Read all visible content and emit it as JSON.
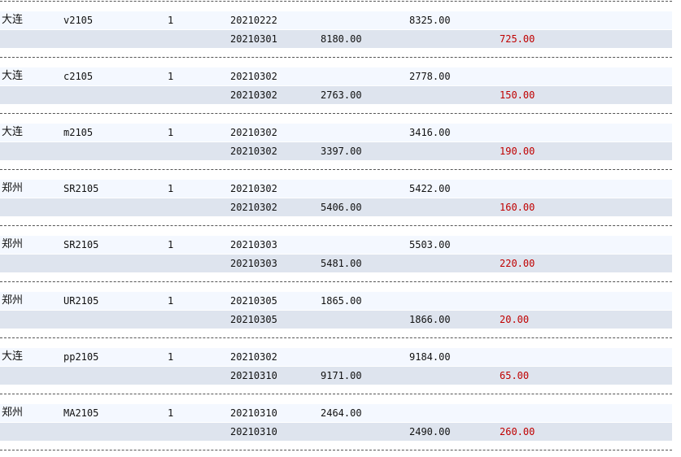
{
  "theme": {
    "pnl_color": "#c00000",
    "open_row_bg": "#f4f8ff",
    "close_row_bg": "#dee4ee"
  },
  "trades": [
    {
      "exchange": "大连",
      "code": "v2105",
      "qty": "1",
      "open": {
        "date": "20210222",
        "buy": "",
        "sell": "8325.00"
      },
      "close": {
        "date": "20210301",
        "buy": "8180.00",
        "sell": "",
        "pnl": "725.00"
      }
    },
    {
      "exchange": "大连",
      "code": "c2105",
      "qty": "1",
      "open": {
        "date": "20210302",
        "buy": "",
        "sell": "2778.00"
      },
      "close": {
        "date": "20210302",
        "buy": "2763.00",
        "sell": "",
        "pnl": "150.00"
      }
    },
    {
      "exchange": "大连",
      "code": "m2105",
      "qty": "1",
      "open": {
        "date": "20210302",
        "buy": "",
        "sell": "3416.00"
      },
      "close": {
        "date": "20210302",
        "buy": "3397.00",
        "sell": "",
        "pnl": "190.00"
      }
    },
    {
      "exchange": "郑州",
      "code": "SR2105",
      "qty": "1",
      "open": {
        "date": "20210302",
        "buy": "",
        "sell": "5422.00"
      },
      "close": {
        "date": "20210302",
        "buy": "5406.00",
        "sell": "",
        "pnl": "160.00"
      }
    },
    {
      "exchange": "郑州",
      "code": "SR2105",
      "qty": "1",
      "open": {
        "date": "20210303",
        "buy": "",
        "sell": "5503.00"
      },
      "close": {
        "date": "20210303",
        "buy": "5481.00",
        "sell": "",
        "pnl": "220.00"
      }
    },
    {
      "exchange": "郑州",
      "code": "UR2105",
      "qty": "1",
      "open": {
        "date": "20210305",
        "buy": "1865.00",
        "sell": ""
      },
      "close": {
        "date": "20210305",
        "buy": "",
        "sell": "1866.00",
        "pnl": "20.00"
      }
    },
    {
      "exchange": "大连",
      "code": "pp2105",
      "qty": "1",
      "open": {
        "date": "20210302",
        "buy": "",
        "sell": "9184.00"
      },
      "close": {
        "date": "20210310",
        "buy": "9171.00",
        "sell": "",
        "pnl": "65.00"
      }
    },
    {
      "exchange": "郑州",
      "code": "MA2105",
      "qty": "1",
      "open": {
        "date": "20210310",
        "buy": "2464.00",
        "sell": ""
      },
      "close": {
        "date": "20210310",
        "buy": "",
        "sell": "2490.00",
        "pnl": "260.00"
      }
    }
  ]
}
